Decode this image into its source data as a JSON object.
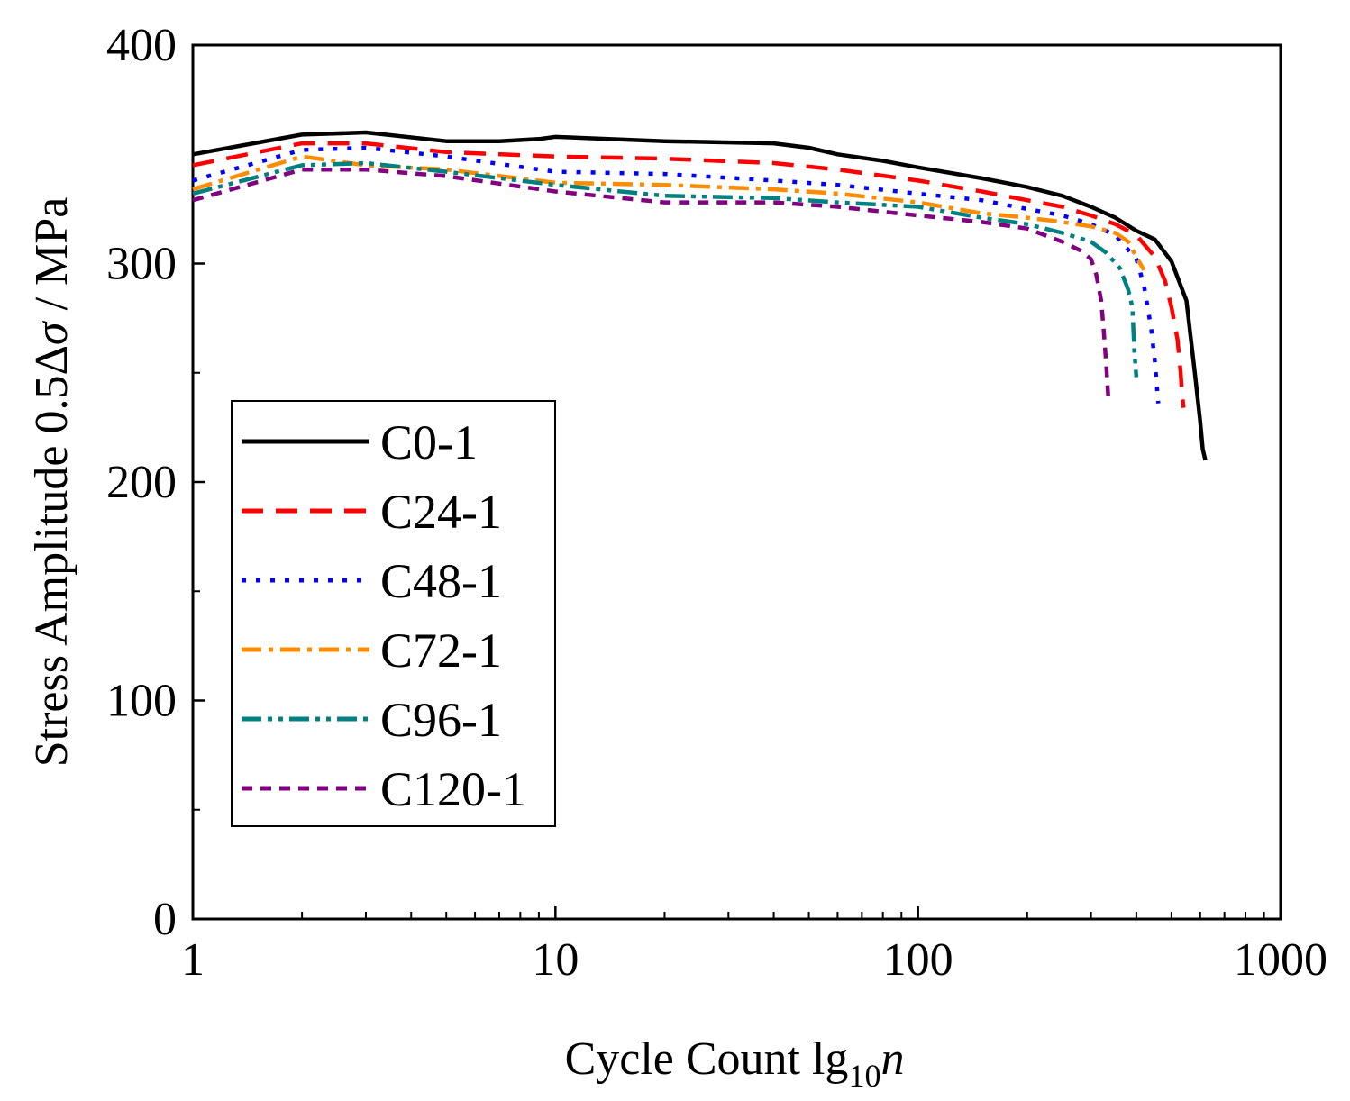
{
  "chart_data": {
    "type": "line",
    "x_scale": "log",
    "xlim": [
      1,
      1000
    ],
    "ylim": [
      0,
      400
    ],
    "xlabel": {
      "main": "Cycle Count lg",
      "sub": "10",
      "italic": "n"
    },
    "ylabel": {
      "prefix": "Stress Amplitude 0.5Δ",
      "italic": "σ",
      "suffix": " / MPa"
    },
    "x_ticks": [
      {
        "value": 1,
        "label": "1"
      },
      {
        "value": 10,
        "label": "10"
      },
      {
        "value": 100,
        "label": "100"
      },
      {
        "value": 1000,
        "label": "1000"
      }
    ],
    "y_ticks": [
      {
        "value": 0,
        "label": "0"
      },
      {
        "value": 100,
        "label": "100"
      },
      {
        "value": 200,
        "label": "200"
      },
      {
        "value": 300,
        "label": "300"
      },
      {
        "value": 400,
        "label": "400"
      }
    ],
    "y_minor_ticks": [
      50,
      150,
      250,
      350
    ],
    "legend_position": "left-middle",
    "series": [
      {
        "name": "C0-1",
        "color": "#000000",
        "style": "solid",
        "x": [
          1,
          2,
          3,
          5,
          7,
          9,
          10,
          20,
          40,
          50,
          60,
          80,
          100,
          150,
          200,
          250,
          300,
          350,
          400,
          450,
          500,
          550,
          580,
          600,
          610,
          620
        ],
        "y": [
          350,
          359,
          360,
          356,
          356,
          357,
          358,
          356,
          355,
          353,
          350,
          347,
          344,
          339,
          335,
          331,
          326,
          321,
          315,
          311,
          301,
          283,
          250,
          228,
          215,
          210
        ]
      },
      {
        "name": "C24-1",
        "color": "#ff0000",
        "style": "dashed",
        "x": [
          1,
          2,
          3,
          5,
          10,
          20,
          40,
          60,
          100,
          150,
          200,
          250,
          300,
          350,
          400,
          450,
          480,
          500,
          520,
          530,
          535,
          540
        ],
        "y": [
          345,
          355,
          355,
          351,
          349,
          348,
          346,
          343,
          338,
          333,
          329,
          326,
          322,
          318,
          313,
          303,
          292,
          280,
          265,
          250,
          240,
          234
        ]
      },
      {
        "name": "C48-1",
        "color": "#0000ff",
        "style": "dotted",
        "x": [
          1,
          2,
          3,
          5,
          10,
          20,
          40,
          60,
          100,
          150,
          200,
          250,
          300,
          350,
          400,
          420,
          440,
          450,
          460
        ],
        "y": [
          338,
          352,
          353,
          349,
          342,
          341,
          338,
          336,
          332,
          329,
          325,
          322,
          318,
          313,
          302,
          290,
          270,
          255,
          236
        ]
      },
      {
        "name": "C72-1",
        "color": "#ff8c00",
        "style": "dashdot",
        "x": [
          1,
          2,
          3,
          5,
          10,
          20,
          40,
          60,
          100,
          150,
          200,
          250,
          300,
          350,
          380,
          400,
          420
        ],
        "y": [
          334,
          349,
          345,
          343,
          337,
          336,
          334,
          332,
          328,
          323,
          321,
          319,
          317,
          314,
          310,
          303,
          297
        ]
      },
      {
        "name": "C96-1",
        "color": "#008080",
        "style": "dashdotdot",
        "x": [
          1,
          2,
          3,
          5,
          10,
          20,
          40,
          60,
          100,
          150,
          200,
          250,
          300,
          330,
          360,
          380,
          390,
          395,
          400
        ],
        "y": [
          332,
          345,
          346,
          342,
          336,
          331,
          330,
          328,
          326,
          321,
          318,
          314,
          310,
          305,
          298,
          288,
          280,
          260,
          248
        ]
      },
      {
        "name": "C120-1",
        "color": "#800080",
        "style": "shortdash",
        "x": [
          1,
          2,
          3,
          5,
          10,
          20,
          40,
          60,
          100,
          150,
          200,
          250,
          280,
          300,
          310,
          320,
          325,
          330,
          335
        ],
        "y": [
          329,
          343,
          343,
          340,
          333,
          328,
          328,
          326,
          322,
          319,
          316,
          310,
          306,
          302,
          295,
          283,
          270,
          255,
          238
        ]
      }
    ]
  }
}
